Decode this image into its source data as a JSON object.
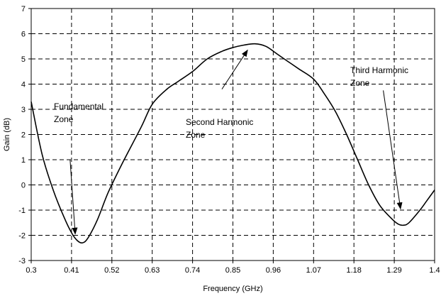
{
  "chart_data": {
    "type": "line",
    "title": "",
    "xlabel": "Frequency (GHz)",
    "ylabel": "Gain (dB)",
    "xlim": [
      0.3,
      1.4
    ],
    "ylim": [
      -3,
      7
    ],
    "grid": true,
    "x_ticks": [
      "0.3",
      "0.41",
      "0.52",
      "0.63",
      "0.74",
      "0.85",
      "0.96",
      "1.07",
      "1.18",
      "1.29",
      "1.4"
    ],
    "y_ticks": [
      "-3",
      "-2",
      "-1",
      "0",
      "1",
      "2",
      "3",
      "4",
      "5",
      "6",
      "7"
    ],
    "series": [
      {
        "values": [
          [
            0.3,
            3.3
          ],
          [
            0.33,
            1.2
          ],
          [
            0.36,
            -0.2
          ],
          [
            0.39,
            -1.3
          ],
          [
            0.41,
            -1.9
          ],
          [
            0.425,
            -2.2
          ],
          [
            0.44,
            -2.3
          ],
          [
            0.455,
            -2.1
          ],
          [
            0.48,
            -1.4
          ],
          [
            0.51,
            -0.3
          ],
          [
            0.55,
            0.9
          ],
          [
            0.6,
            2.3
          ],
          [
            0.63,
            3.2
          ],
          [
            0.67,
            3.8
          ],
          [
            0.7,
            4.1
          ],
          [
            0.74,
            4.5
          ],
          [
            0.78,
            5.0
          ],
          [
            0.82,
            5.3
          ],
          [
            0.85,
            5.45
          ],
          [
            0.88,
            5.55
          ],
          [
            0.91,
            5.6
          ],
          [
            0.94,
            5.5
          ],
          [
            0.97,
            5.2
          ],
          [
            1.0,
            4.9
          ],
          [
            1.03,
            4.6
          ],
          [
            1.07,
            4.2
          ],
          [
            1.1,
            3.6
          ],
          [
            1.13,
            2.9
          ],
          [
            1.16,
            2.0
          ],
          [
            1.19,
            1.0
          ],
          [
            1.22,
            0.0
          ],
          [
            1.25,
            -0.8
          ],
          [
            1.28,
            -1.3
          ],
          [
            1.3,
            -1.55
          ],
          [
            1.315,
            -1.6
          ],
          [
            1.33,
            -1.5
          ],
          [
            1.36,
            -1.0
          ],
          [
            1.38,
            -0.6
          ],
          [
            1.4,
            -0.2
          ]
        ]
      }
    ],
    "annotations": [
      {
        "lines": [
          "Fundamental",
          "Zone"
        ],
        "arrow_from": [
          0.406,
          1.0
        ],
        "arrow_to": [
          0.42,
          -1.95
        ]
      },
      {
        "lines": [
          "Second Harmonic",
          "Zone"
        ],
        "arrow_from": [
          0.82,
          3.8
        ],
        "arrow_to": [
          0.89,
          5.35
        ]
      },
      {
        "lines": [
          "Third Harmonic",
          "Zone"
        ],
        "arrow_from": [
          1.26,
          3.75
        ],
        "arrow_to": [
          1.307,
          -0.95
        ]
      }
    ]
  }
}
